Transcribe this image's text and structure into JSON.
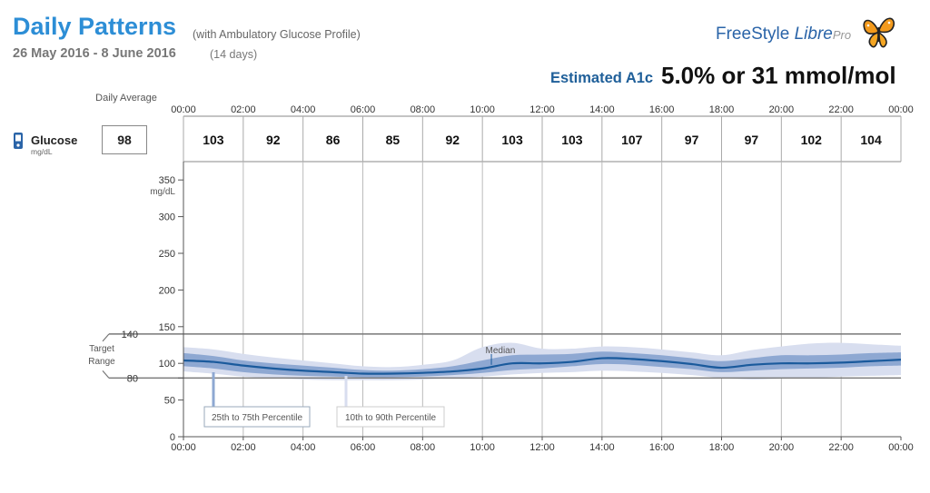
{
  "header": {
    "title": "Daily Patterns",
    "subtitle": "(with Ambulatory Glucose Profile)",
    "date_range": "26 May 2016 - 8 June 2016",
    "day_count": "(14 days)",
    "logo_freestyle": "FreeStyle",
    "logo_libre": "Libre",
    "logo_pro": "Pro",
    "a1c_label": "Estimated A1c",
    "a1c_value": "5.0% or 31 mmol/mol"
  },
  "summary": {
    "daily_average_label": "Daily Average",
    "glucose_label": "Glucose",
    "glucose_unit": "mg/dL",
    "daily_average_value": "98"
  },
  "colors": {
    "median": "#1a5a9c",
    "iqr_band": "#8ea8d2",
    "outer_band": "#d8deef",
    "target_line": "#777777",
    "grid": "#bbbbbb"
  },
  "chart_data": {
    "type": "area",
    "x_ticks": [
      "00:00",
      "02:00",
      "04:00",
      "06:00",
      "08:00",
      "10:00",
      "12:00",
      "14:00",
      "16:00",
      "18:00",
      "20:00",
      "22:00",
      "00:00"
    ],
    "hourly_labels": [
      "00:00",
      "02:00",
      "04:00",
      "06:00",
      "08:00",
      "10:00",
      "12:00",
      "14:00",
      "16:00",
      "18:00",
      "20:00",
      "22:00"
    ],
    "hourly_averages": [
      103,
      92,
      86,
      85,
      92,
      103,
      103,
      107,
      97,
      97,
      102,
      104
    ],
    "y_ticks": [
      0,
      50,
      80,
      100,
      150,
      200,
      250,
      300,
      350
    ],
    "ylabel": "mg/dL",
    "ylim": [
      0,
      375
    ],
    "xlim_hours": [
      0,
      24
    ],
    "target_range": {
      "label": "Target Range",
      "low": 80,
      "high": 140,
      "low_label": "80",
      "high_label": "140"
    },
    "median_label": "Median",
    "legend": {
      "iqr": "25th to 75th Percentile",
      "outer": "10th to 90th Percentile"
    },
    "x_hours": [
      0,
      1,
      2,
      3,
      4,
      5,
      6,
      7,
      8,
      9,
      10,
      11,
      12,
      13,
      14,
      15,
      16,
      17,
      18,
      19,
      20,
      21,
      22,
      23,
      24
    ],
    "series": [
      {
        "name": "Median",
        "values": [
          104,
          102,
          97,
          93,
          90,
          88,
          86,
          86,
          87,
          89,
          93,
          100,
          100,
          102,
          107,
          106,
          103,
          99,
          94,
          98,
          100,
          100,
          101,
          103,
          105
        ]
      },
      {
        "p25": [
          96,
          93,
          88,
          85,
          83,
          82,
          81,
          81,
          82,
          84,
          87,
          91,
          93,
          96,
          99,
          98,
          95,
          92,
          88,
          90,
          92,
          93,
          94,
          96,
          97
        ]
      },
      {
        "p75": [
          114,
          110,
          104,
          100,
          97,
          94,
          91,
          90,
          92,
          96,
          104,
          111,
          112,
          113,
          116,
          114,
          111,
          107,
          103,
          107,
          111,
          111,
          112,
          114,
          115
        ]
      },
      {
        "p10": [
          89,
          86,
          82,
          80,
          78,
          77,
          77,
          77,
          78,
          80,
          82,
          85,
          87,
          88,
          90,
          89,
          87,
          84,
          80,
          78,
          79,
          80,
          82,
          83,
          84
        ]
      },
      {
        "p90": [
          122,
          119,
          113,
          108,
          104,
          100,
          96,
          95,
          98,
          104,
          122,
          128,
          120,
          120,
          123,
          122,
          119,
          115,
          111,
          118,
          123,
          127,
          128,
          126,
          124
        ]
      }
    ]
  }
}
